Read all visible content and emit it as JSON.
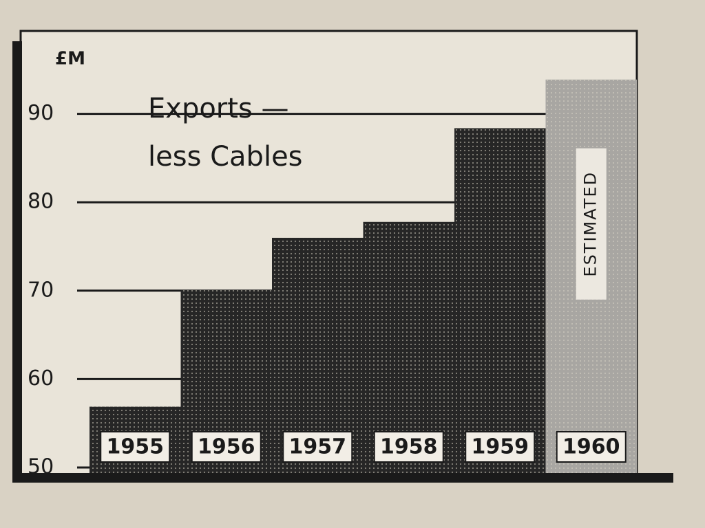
{
  "chart_data": {
    "type": "bar",
    "title": [
      "Exports —",
      "less Cables"
    ],
    "y_label": "£M",
    "categories": [
      "1955",
      "1956",
      "1957",
      "1958",
      "1959",
      "1960"
    ],
    "values": [
      57.5,
      70.7,
      76.6,
      78.4,
      89,
      94.5
    ],
    "colors": [
      "#262626",
      "#262626",
      "#262626",
      "#262626",
      "#262626",
      "#a8a6a2"
    ],
    "annotation": "ESTIMATED",
    "ylim": [
      50,
      100
    ],
    "yticks": [
      50,
      60,
      70,
      80,
      90
    ],
    "grid": true
  }
}
